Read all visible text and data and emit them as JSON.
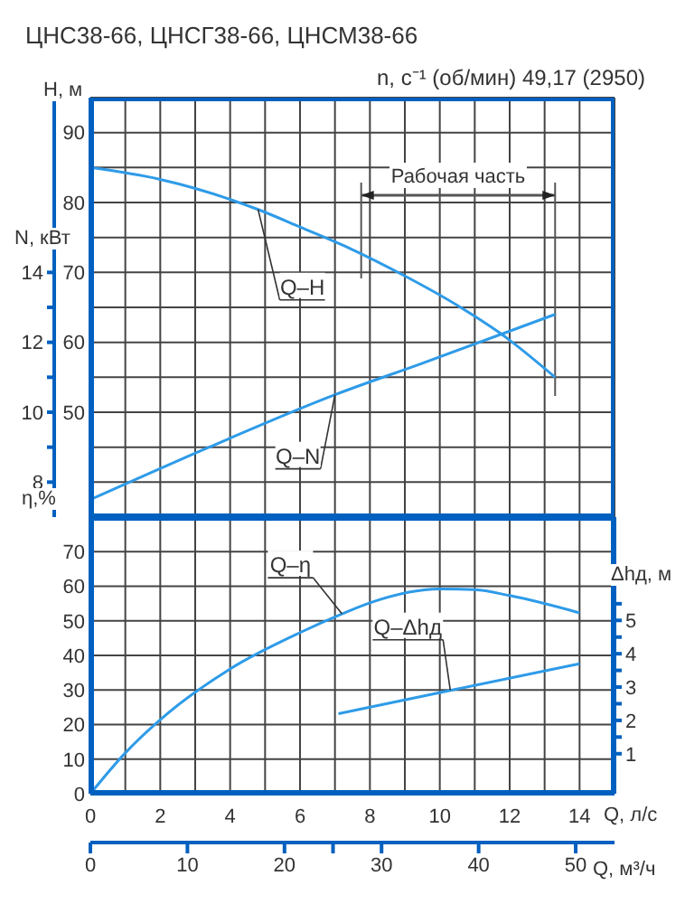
{
  "chart_data": [
    {
      "type": "line",
      "title": "ЦНС38-66, ЦНСГ38-66, ЦНСМ38-66",
      "annotations": [
        "n, с⁻¹ (об/мин) 49,17 (2950)",
        "Рабочая часть"
      ],
      "ylabel": "H, м",
      "y2label": "N, кВт",
      "tick_labels": "y",
      "grid": true,
      "xlim": [
        0,
        15
      ],
      "xticks": [
        0,
        1,
        2,
        3,
        4,
        5,
        6,
        7,
        8,
        9,
        10,
        11,
        12,
        13,
        14,
        15
      ],
      "ylim": [
        35,
        95
      ],
      "yticks": [
        {
          "value": 40,
          "label": null
        },
        {
          "value": 45,
          "label": null
        },
        50,
        {
          "value": 55,
          "label": null
        },
        60,
        {
          "value": 65,
          "label": null
        },
        70,
        {
          "value": 75,
          "label": null
        },
        80,
        {
          "value": 85,
          "label": null
        },
        90
      ],
      "y2lim": [
        7,
        19
      ],
      "y2ticks": [
        8,
        {
          "value": 9,
          "label": null
        },
        10,
        {
          "value": 11,
          "label": null
        },
        12,
        {
          "value": 13,
          "label": null
        },
        14
      ],
      "ref_lines": [
        {
          "axis": "x",
          "value": 7.75,
          "color": "#555555"
        },
        {
          "axis": "x",
          "value": 13.3,
          "color": "#555555"
        }
      ],
      "series": [
        {
          "name": "Q–H",
          "color": "#2e9be8",
          "x": [
            0,
            2,
            4.8,
            6,
            7.4,
            9,
            10.5,
            11.7,
            12,
            13.3
          ],
          "values": [
            85,
            83.3,
            79,
            76.5,
            73.5,
            69.5,
            65.3,
            61.4,
            60.3,
            55
          ]
        },
        {
          "name": "Q–N",
          "color": "#2e9be8",
          "axis": "y2",
          "x": [
            0,
            3.4,
            7,
            9.5,
            13.3
          ],
          "values": [
            7.5,
            9,
            10.5,
            11.4,
            12.8
          ]
        }
      ]
    },
    {
      "type": "line",
      "xlabel": "Q, л/с",
      "x2label": "Q, м³/ч",
      "ylabel": "η,%",
      "y2label": "Δhд, м",
      "grid": true,
      "xlim": [
        0,
        15
      ],
      "xticks": [
        0,
        {
          "value": 1,
          "label": null
        },
        2,
        {
          "value": 3,
          "label": null
        },
        4,
        {
          "value": 5,
          "label": null
        },
        6,
        {
          "value": 7,
          "label": null
        },
        8,
        {
          "value": 9,
          "label": null
        },
        10,
        {
          "value": 11,
          "label": null
        },
        12,
        {
          "value": 13,
          "label": null
        },
        14,
        {
          "value": 15,
          "label": null
        }
      ],
      "x2lim": [
        0,
        54
      ],
      "x2ticks": [
        0,
        10,
        20,
        {
          "value": 25,
          "label": null
        },
        30,
        40,
        50
      ],
      "ylim": [
        0,
        80
      ],
      "yticks": [
        0,
        10,
        20,
        30,
        40,
        50,
        60,
        70,
        {
          "value": 80,
          "label": null
        }
      ],
      "y2lim": [
        -0.2,
        8.1
      ],
      "y2ticks": [
        1,
        {
          "value": 1.5,
          "label": null
        },
        2,
        {
          "value": 2.5,
          "label": null
        },
        3,
        {
          "value": 3.5,
          "label": null
        },
        4,
        {
          "value": 4.5,
          "label": null
        },
        5,
        {
          "value": 5.5,
          "label": null
        }
      ],
      "series": [
        {
          "name": "Q–η",
          "color": "#2e9be8",
          "x": [
            0,
            1,
            2,
            4,
            6,
            7.2,
            8,
            10,
            11,
            12,
            14
          ],
          "values": [
            0,
            11.8,
            21.4,
            36.1,
            46.6,
            52,
            55.2,
            59.2,
            59,
            57.3,
            52.3
          ]
        },
        {
          "name": "Q–Δhд",
          "color": "#2e9be8",
          "axis": "y2",
          "x": [
            7.1,
            10.3,
            14
          ],
          "values": [
            2.2,
            2.9,
            3.7
          ]
        }
      ]
    }
  ]
}
